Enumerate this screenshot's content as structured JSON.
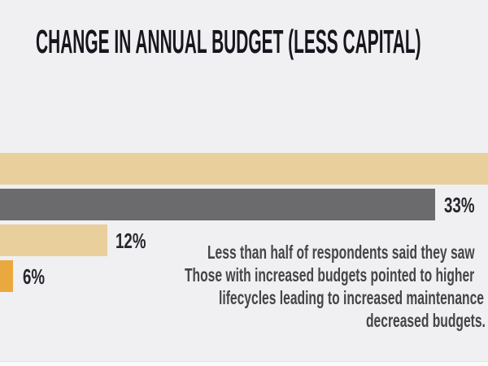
{
  "title": "CHANGE IN ANNUAL BUDGET (LESS CAPITAL)",
  "chart_data": {
    "type": "bar",
    "orientation": "horizontal",
    "title": "CHANGE IN ANNUAL BUDGET (LESS CAPITAL)",
    "axes_visible": false,
    "category_labels_visible": false,
    "bars": [
      {
        "value": null,
        "value_label": "",
        "color": "#e9cf9c",
        "cut_off_at_right_edge": true
      },
      {
        "value": 33,
        "value_label": "33%",
        "color": "#6b6b6e"
      },
      {
        "value": 12,
        "value_label": "12%",
        "color": "#e9cf9c"
      },
      {
        "value": 6,
        "value_label": "6%",
        "color": "#e9a93e"
      }
    ],
    "legend": "none",
    "grid": false
  },
  "annotation": {
    "lines": [
      "Less than half of respondents said they saw",
      "Those with increased budgets pointed to higher",
      "lifecycles leading to increased maintenance",
      "decreased budgets."
    ]
  },
  "colors": {
    "background": "#f0f0f2",
    "title_text": "#16161d",
    "value_label_text": "#26262c",
    "annotation_text": "#454547",
    "bar_tan": "#e9cf9c",
    "bar_gray": "#6b6b6e",
    "bar_gold": "#e9a93e",
    "bottom_strip": "#fafafb"
  }
}
